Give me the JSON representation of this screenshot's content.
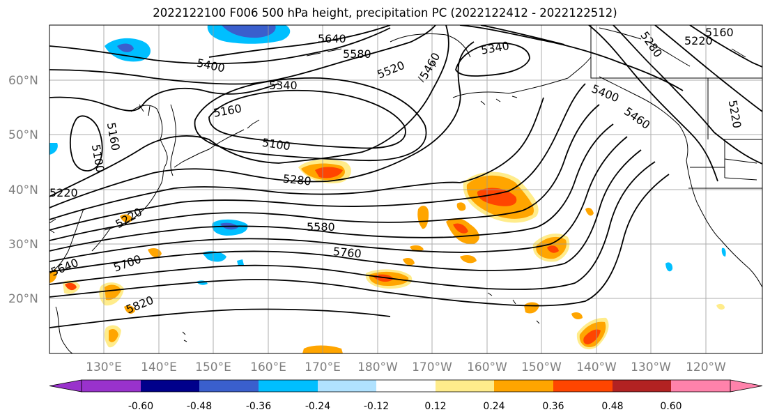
{
  "title": "2022122100 F006 500 hPa height, precipitation PC (2022122412 - 2022122512)",
  "lat_labels": [
    "60°N",
    "50°N",
    "40°N",
    "30°N",
    "20°N"
  ],
  "lon_labels": [
    "130°E",
    "140°E",
    "150°E",
    "160°E",
    "170°E",
    "180°W",
    "170°W",
    "160°W",
    "150°W",
    "140°W",
    "130°W",
    "120°W"
  ],
  "colorbar": {
    "tick_labels": [
      "-0.60",
      "-0.48",
      "-0.36",
      "-0.24",
      "-0.12",
      "0.12",
      "0.24",
      "0.36",
      "0.48",
      "0.60"
    ],
    "colors": [
      "#9932cc",
      "#00008b",
      "#3a5fcd",
      "#00bfff",
      "#b0e2ff",
      "#ffffff",
      "#ffec8b",
      "#ffa500",
      "#ff4500",
      "#b22222",
      "#ff82ab"
    ]
  },
  "contour_labels": [
    "5640",
    "5580",
    "5520",
    "5460",
    "5340",
    "5400",
    "5340",
    "5160",
    "5100",
    "5280",
    "5580",
    "5760",
    "5700",
    "5640",
    "5820",
    "5160",
    "5100",
    "5220",
    "5400",
    "5460",
    "5280",
    "5220",
    "5160",
    "5220",
    "5220",
    "5520"
  ]
}
